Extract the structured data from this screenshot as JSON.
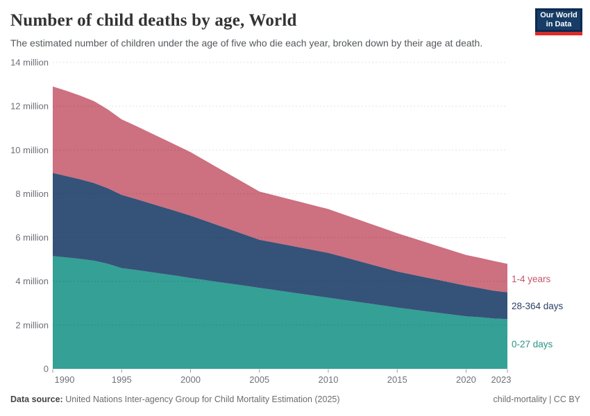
{
  "header": {
    "title": "Number of child deaths by age, World",
    "subtitle": "The estimated number of children under the age of five who die each year, broken down by their age at death.",
    "logo": {
      "line1": "Our World",
      "line2": "in Data",
      "bg_color": "#0c2a50",
      "box_color": "#173d66",
      "accent_color": "#dc2c27"
    }
  },
  "footer": {
    "source_label": "Data source:",
    "source_text": " United Nations Inter-agency Group for Child Mortality Estimation (2025)",
    "license": "child-mortality | CC BY"
  },
  "chart_data": {
    "type": "area",
    "stacked": true,
    "title": "Number of child deaths by age, World",
    "xlabel": "",
    "ylabel": "",
    "unit": "million deaths per year",
    "grid": true,
    "legend_position": "right-of-plot",
    "ylim": [
      0,
      14
    ],
    "yticks": [
      0,
      2,
      4,
      6,
      8,
      10,
      12,
      14
    ],
    "ytick_labels": [
      "0",
      "2 million",
      "4 million",
      "6 million",
      "8 million",
      "10 million",
      "12 million",
      "14 million"
    ],
    "xticks": [
      1990,
      1995,
      2000,
      2005,
      2010,
      2015,
      2020,
      2023
    ],
    "x": [
      1990,
      1991,
      1992,
      1993,
      1994,
      1995,
      1996,
      1997,
      1998,
      1999,
      2000,
      2001,
      2002,
      2003,
      2004,
      2005,
      2006,
      2007,
      2008,
      2009,
      2010,
      2011,
      2012,
      2013,
      2014,
      2015,
      2016,
      2017,
      2018,
      2019,
      2020,
      2021,
      2022,
      2023
    ],
    "series": [
      {
        "name": "0-27 days",
        "color": "#34A096",
        "label_color": "#2A9287",
        "values": [
          5.15,
          5.09,
          5.02,
          4.94,
          4.8,
          4.6,
          4.52,
          4.43,
          4.34,
          4.25,
          4.15,
          4.06,
          3.97,
          3.88,
          3.79,
          3.7,
          3.61,
          3.52,
          3.43,
          3.34,
          3.25,
          3.16,
          3.07,
          2.98,
          2.89,
          2.8,
          2.72,
          2.64,
          2.56,
          2.48,
          2.4,
          2.36,
          2.3,
          2.27
        ]
      },
      {
        "name": "28-364 days",
        "color": "#355379",
        "label_color": "#2B3F66",
        "values": [
          3.8,
          3.72,
          3.64,
          3.55,
          3.45,
          3.35,
          3.25,
          3.15,
          3.05,
          2.95,
          2.85,
          2.72,
          2.59,
          2.46,
          2.33,
          2.2,
          2.17,
          2.14,
          2.11,
          2.08,
          2.05,
          1.97,
          1.89,
          1.81,
          1.73,
          1.65,
          1.6,
          1.55,
          1.5,
          1.45,
          1.4,
          1.33,
          1.27,
          1.23
        ]
      },
      {
        "name": "1-4 years",
        "color": "#CD7080",
        "label_color": "#C4566C",
        "values": [
          3.95,
          3.89,
          3.82,
          3.74,
          3.6,
          3.45,
          3.34,
          3.23,
          3.12,
          3.01,
          2.9,
          2.76,
          2.62,
          2.48,
          2.34,
          2.2,
          2.16,
          2.12,
          2.08,
          2.04,
          2.0,
          1.95,
          1.9,
          1.85,
          1.8,
          1.75,
          1.68,
          1.61,
          1.54,
          1.47,
          1.4,
          1.38,
          1.36,
          1.3
        ]
      }
    ]
  }
}
